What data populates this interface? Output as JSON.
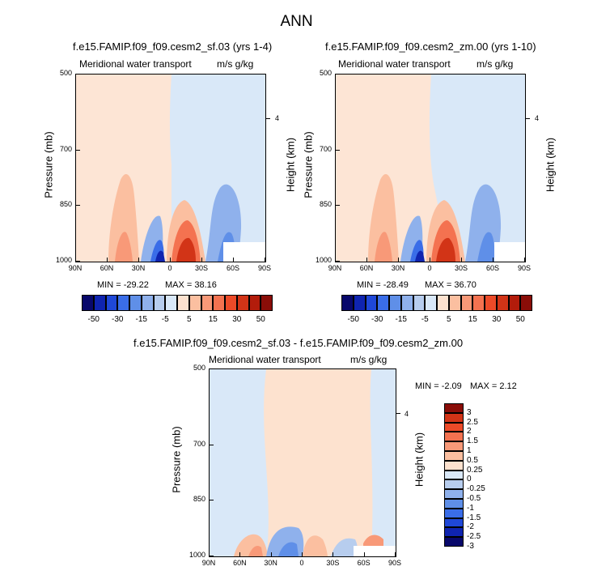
{
  "page": {
    "title": "ANN"
  },
  "colors": {
    "palette": [
      "#08086b",
      "#0f24b0",
      "#1f48d8",
      "#3a6de8",
      "#5f8fe8",
      "#8fb1ec",
      "#b7cdee",
      "#d9e8f8",
      "#fde2cf",
      "#fbbfa0",
      "#f89978",
      "#f47250",
      "#ec4a28",
      "#d23417",
      "#b31c0b",
      "#8a0d08"
    ],
    "diff_palette": [
      "#08086b",
      "#0f24b0",
      "#1f48d8",
      "#3a6de8",
      "#5f8fe8",
      "#8fb1ec",
      "#b7cdee",
      "#d9e8f8",
      "#fde2cf",
      "#fbbfa0",
      "#f89978",
      "#f47250",
      "#ec4a28",
      "#d23417",
      "#8a0d08"
    ]
  },
  "chart_data": [
    {
      "type": "heatmap",
      "title": "f.e15.FAMIP.f09_f09.cesm2_sf.03 (yrs 1-4)",
      "variable": "Meridional water transport",
      "units": "m/s g/kg",
      "ylabel": "Pressure (mb)",
      "ylabel_right": "Height (km)",
      "right_tick": "4",
      "xticks": [
        "90N",
        "60N",
        "30N",
        "0",
        "30S",
        "60S",
        "90S"
      ],
      "yticks": [
        "500",
        "700",
        "850",
        "1000"
      ],
      "min_label": "MIN = -29.22",
      "max_label": "MAX =  38.16",
      "min": -29.22,
      "max": 38.16,
      "colorbar_labels": [
        "-50",
        "-30",
        "-15",
        "-5",
        "5",
        "15",
        "30",
        "50"
      ]
    },
    {
      "type": "heatmap",
      "title": "f.e15.FAMIP.f09_f09.cesm2_zm.00 (yrs 1-10)",
      "variable": "Meridional water transport",
      "units": "m/s g/kg",
      "ylabel": "Pressure (mb)",
      "ylabel_right": "Height (km)",
      "right_tick": "4",
      "xticks": [
        "90N",
        "60N",
        "30N",
        "0",
        "30S",
        "60S",
        "90S"
      ],
      "yticks": [
        "500",
        "700",
        "850",
        "1000"
      ],
      "min_label": "MIN = -28.49",
      "max_label": "MAX =  36.70",
      "min": -28.49,
      "max": 36.7,
      "colorbar_labels": [
        "-50",
        "-30",
        "-15",
        "-5",
        "5",
        "15",
        "30",
        "50"
      ]
    },
    {
      "type": "heatmap",
      "title": "f.e15.FAMIP.f09_f09.cesm2_sf.03 - f.e15.FAMIP.f09_f09.cesm2_zm.00",
      "variable": "Meridional water transport",
      "units": "m/s g/kg",
      "ylabel": "Pressure (mb)",
      "ylabel_right": "Height (km)",
      "right_tick": "4",
      "xticks": [
        "90N",
        "60N",
        "30N",
        "0",
        "30S",
        "60S",
        "90S"
      ],
      "yticks": [
        "500",
        "700",
        "850",
        "1000"
      ],
      "min_label": "MIN =  -2.09",
      "max_label": "MAX =   2.12",
      "min": -2.09,
      "max": 2.12,
      "colorbar_labels": [
        "3",
        "2.5",
        "2",
        "1.5",
        "1",
        "0.5",
        "0.25",
        "0",
        "-0.25",
        "-0.5",
        "-1",
        "-1.5",
        "-2",
        "-2.5",
        "-3"
      ]
    }
  ]
}
